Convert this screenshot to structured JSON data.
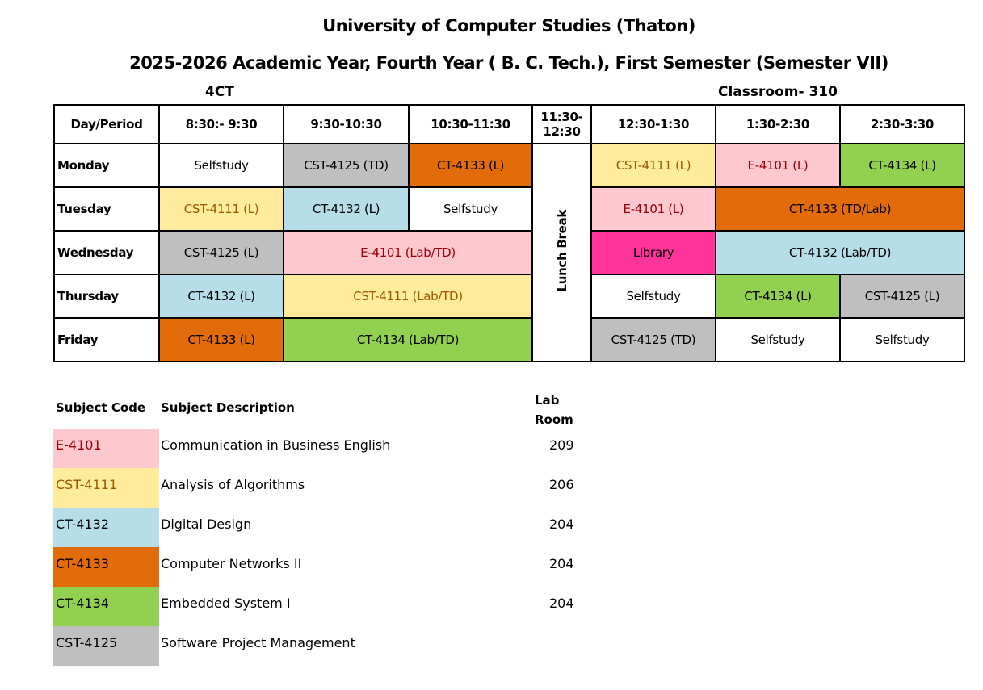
{
  "title": "University of Computer Studies (Thaton)",
  "subtitle": "2025-2026 Academic Year, Fourth Year ( B. C. Tech.), First Semester (Semester VII)",
  "class_name": "4CT",
  "classroom": "Classroom- 310",
  "colors": {
    "pink": "#ffc7ce",
    "pink_text": "#9c0006",
    "yellow": "#ffeb9c",
    "yellow_text": "#9c5700",
    "blue": "#b7dee8",
    "orange": "#e26b0a",
    "green": "#92d050",
    "gray": "#bfbfbf",
    "magenta": "#ff3399",
    "white": "#ffffff"
  },
  "timetable": {
    "headers": [
      "Day/Period",
      "8:30:- 9:30",
      "9:30-10:30",
      "10:30-11:30",
      "11:30-12:30",
      "12:30-1:30",
      "1:30-2:30",
      "2:30-3:30"
    ],
    "lunch": "Lunch Break",
    "rows": [
      {
        "day": "Monday",
        "cells": [
          {
            "text": "Selfstudy",
            "span": 1,
            "color": "white"
          },
          {
            "text": "CST-4125 (TD)",
            "span": 1,
            "color": "gray"
          },
          {
            "text": "CT-4133 (L)",
            "span": 1,
            "color": "orange"
          },
          {
            "text": "CST-4111 (L)",
            "span": 1,
            "color": "yellow"
          },
          {
            "text": "E-4101 (L)",
            "span": 1,
            "color": "pink"
          },
          {
            "text": "CT-4134 (L)",
            "span": 1,
            "color": "green"
          }
        ]
      },
      {
        "day": "Tuesday",
        "cells": [
          {
            "text": "CST-4111 (L)",
            "span": 1,
            "color": "yellow"
          },
          {
            "text": "CT-4132 (L)",
            "span": 1,
            "color": "blue"
          },
          {
            "text": "Selfstudy",
            "span": 1,
            "color": "white"
          },
          {
            "text": "E-4101 (L)",
            "span": 1,
            "color": "pink"
          },
          {
            "text": "CT-4133 (TD/Lab)",
            "span": 2,
            "color": "orange"
          }
        ]
      },
      {
        "day": "Wednesday",
        "cells": [
          {
            "text": "CST-4125 (L)",
            "span": 1,
            "color": "gray"
          },
          {
            "text": "E-4101 (Lab/TD)",
            "span": 2,
            "color": "pink"
          },
          {
            "text": "Library",
            "span": 1,
            "color": "magenta"
          },
          {
            "text": "CT-4132 (Lab/TD)",
            "span": 2,
            "color": "blue"
          }
        ]
      },
      {
        "day": "Thursday",
        "cells": [
          {
            "text": "CT-4132 (L)",
            "span": 1,
            "color": "blue"
          },
          {
            "text": "CST-4111 (Lab/TD)",
            "span": 2,
            "color": "yellow"
          },
          {
            "text": "Selfstudy",
            "span": 1,
            "color": "white"
          },
          {
            "text": "CT-4134 (L)",
            "span": 1,
            "color": "green"
          },
          {
            "text": "CST-4125 (L)",
            "span": 1,
            "color": "gray"
          }
        ]
      },
      {
        "day": "Friday",
        "cells": [
          {
            "text": "CT-4133 (L)",
            "span": 1,
            "color": "orange"
          },
          {
            "text": "CT-4134 (Lab/TD)",
            "span": 2,
            "color": "green"
          },
          {
            "text": "CST-4125 (TD)",
            "span": 1,
            "color": "gray"
          },
          {
            "text": "Selfstudy",
            "span": 1,
            "color": "white"
          },
          {
            "text": "Selfstudy",
            "span": 1,
            "color": "white"
          }
        ]
      }
    ]
  },
  "legend": {
    "headers": {
      "code": "Subject Code",
      "desc": "Subject Description",
      "room_line1": "Lab",
      "room_line2": "Room"
    },
    "items": [
      {
        "code": "E-4101",
        "desc": "Communication in Business English",
        "room": "209",
        "color": "pink"
      },
      {
        "code": "CST-4111",
        "desc": "Analysis of Algorithms",
        "room": "206",
        "color": "yellow"
      },
      {
        "code": "CT-4132",
        "desc": "Digital Design",
        "room": "204",
        "color": "blue"
      },
      {
        "code": "CT-4133",
        "desc": "Computer Networks II",
        "room": "204",
        "color": "orange"
      },
      {
        "code": "CT-4134",
        "desc": "Embedded System I",
        "room": "204",
        "color": "green"
      },
      {
        "code": "CST-4125",
        "desc": "Software Project Management",
        "room": "",
        "color": "gray"
      }
    ]
  }
}
